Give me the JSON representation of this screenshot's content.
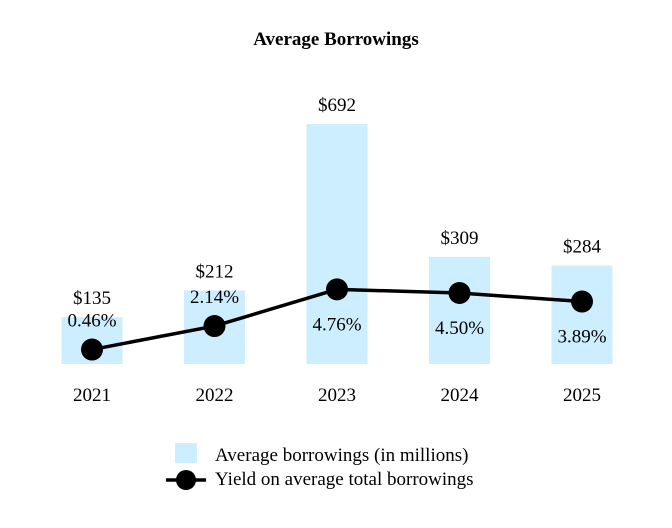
{
  "chart_data": {
    "type": "bar",
    "title": "Average Borrowings",
    "categories": [
      "2021",
      "2022",
      "2023",
      "2024",
      "2025"
    ],
    "series": [
      {
        "name": "Average borrowings (in millions)",
        "kind": "bar",
        "values": [
          135,
          212,
          692,
          309,
          284
        ],
        "labels": [
          "$135",
          "$212",
          "$692",
          "$309",
          "$284"
        ],
        "color": "#cdeefe"
      },
      {
        "name": "Yield on average total borrowings",
        "kind": "line",
        "values": [
          0.46,
          2.14,
          4.76,
          4.5,
          3.89
        ],
        "labels": [
          "0.46%",
          "2.14%",
          "4.76%",
          "4.50%",
          "3.89%"
        ],
        "color": "#000000"
      }
    ],
    "xlabel": "",
    "ylabel": "",
    "grid": false,
    "legend_position": "bottom-center"
  }
}
